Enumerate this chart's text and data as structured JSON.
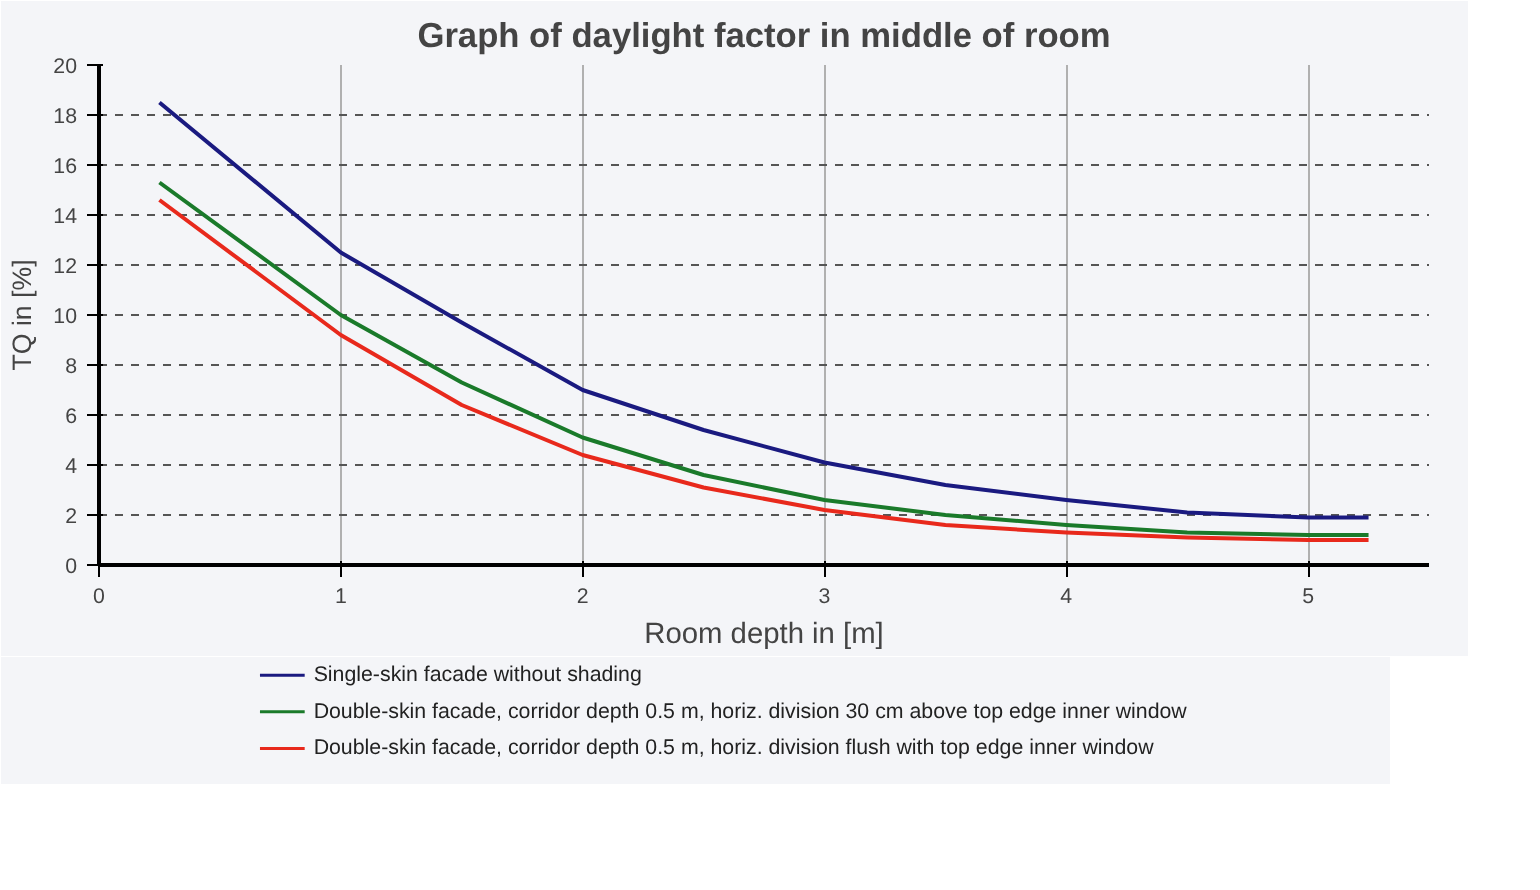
{
  "chart_data": {
    "type": "line",
    "title": "Graph of daylight factor in middle of room",
    "xlabel": "Room depth in [m]",
    "ylabel": "TQ in [%]",
    "x": [
      0.25,
      1,
      1.5,
      2,
      2.5,
      3,
      3.5,
      4,
      4.5,
      5,
      5.25
    ],
    "series": [
      {
        "name": "Single-skin facade without shading",
        "color": "#1a1a80",
        "values": [
          18.5,
          12.5,
          9.7,
          7.0,
          5.4,
          4.1,
          3.2,
          2.6,
          2.1,
          1.9,
          1.9
        ]
      },
      {
        "name": "Double-skin facade, corridor depth 0.5 m, horiz. division 30 cm above top edge inner window",
        "color": "#1a7a2a",
        "values": [
          15.3,
          10.0,
          7.3,
          5.1,
          3.6,
          2.6,
          2.0,
          1.6,
          1.3,
          1.2,
          1.2
        ]
      },
      {
        "name": "Double-skin facade, corridor depth 0.5 m, horiz. division flush with top edge inner window",
        "color": "#e8291c",
        "values": [
          14.6,
          9.2,
          6.4,
          4.4,
          3.1,
          2.2,
          1.6,
          1.3,
          1.1,
          1.0,
          1.0
        ]
      }
    ],
    "xlim": [
      0,
      5.5
    ],
    "ylim": [
      0,
      20
    ],
    "xticks": [
      0,
      1,
      2,
      3,
      4,
      5
    ],
    "yticks": [
      0,
      2,
      4,
      6,
      8,
      10,
      12,
      14,
      16,
      18,
      20
    ],
    "grid": true,
    "legend": "bottom",
    "marker": "none",
    "line_style": "solid"
  }
}
